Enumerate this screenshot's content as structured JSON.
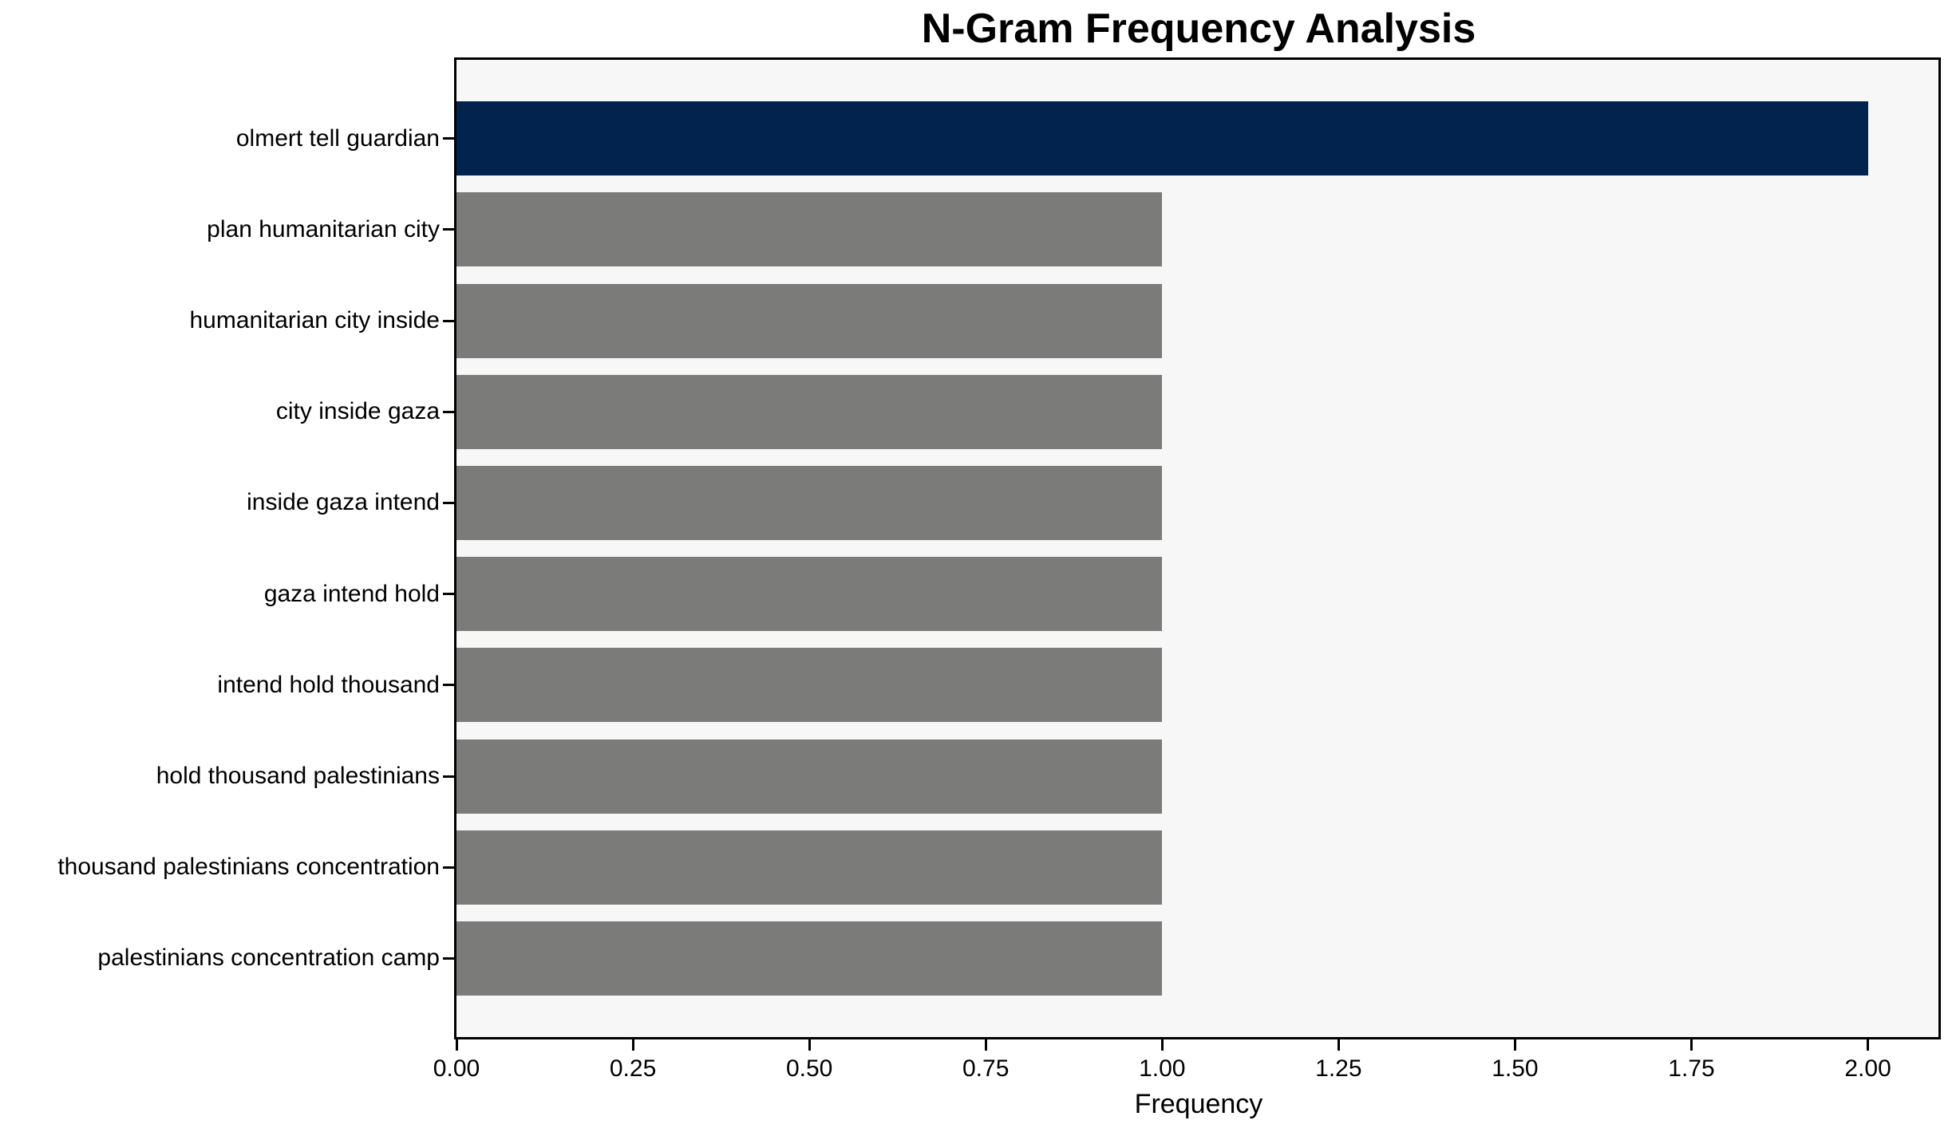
{
  "title": "N-Gram Frequency Analysis",
  "chart_data": {
    "type": "bar",
    "orientation": "horizontal",
    "title": "N-Gram Frequency Analysis",
    "xlabel": "Frequency",
    "ylabel": "",
    "categories": [
      "olmert tell guardian",
      "plan humanitarian city",
      "humanitarian city inside",
      "city inside gaza",
      "inside gaza intend",
      "gaza intend hold",
      "intend hold thousand",
      "hold thousand palestinians",
      "thousand palestinians concentration",
      "palestinians concentration camp"
    ],
    "values": [
      2.0,
      1.0,
      1.0,
      1.0,
      1.0,
      1.0,
      1.0,
      1.0,
      1.0,
      1.0
    ],
    "bar_colors": [
      "#02234d",
      "#7b7b79",
      "#7b7b79",
      "#7b7b79",
      "#7b7b79",
      "#7b7b79",
      "#7b7b79",
      "#7b7b79",
      "#7b7b79",
      "#7b7b79"
    ],
    "xlim": [
      0,
      2.1
    ],
    "xticks": [
      0,
      0.25,
      0.5,
      0.75,
      1.0,
      1.25,
      1.5,
      1.75,
      2.0
    ],
    "xtick_labels": [
      "0.00",
      "0.25",
      "0.50",
      "0.75",
      "1.00",
      "1.25",
      "1.50",
      "1.75",
      "2.00"
    ],
    "grid": false,
    "legend": null,
    "colors": {
      "highlight_bar": "#02234d",
      "default_bar": "#7b7b79",
      "plot_background": "#f7f7f7",
      "figure_background": "#ffffff",
      "spine": "#000000",
      "text": "#000000"
    }
  }
}
